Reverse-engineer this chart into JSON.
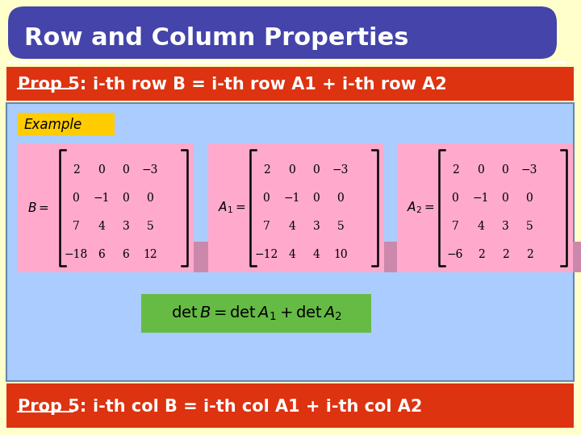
{
  "title": "Row and Column Properties",
  "title_bg": "#4444aa",
  "title_fg": "#ffffff",
  "slide_bg": "#ffffcc",
  "content_bg": "#aaccff",
  "prop5_bg": "#dd3311",
  "prop5_fg": "#ffffff",
  "prop5_text": "Prop 5:",
  "prop5_row_detail": "i-th row B = i-th row A1 + i-th row A2",
  "prop5_col_detail": "i-th col B = i-th col A1 + i-th col A2",
  "example_bg": "#ffcc00",
  "matrix_bg": "#ffaacc",
  "matrix_highlight_bg": "#cc88aa",
  "det_bg": "#66bb44",
  "B_matrix": [
    [
      "2",
      "0",
      "0",
      "−3"
    ],
    [
      "0",
      "−1",
      "0",
      "0"
    ],
    [
      "7",
      "4",
      "3",
      "5"
    ],
    [
      "−18",
      "6",
      "6",
      "12"
    ]
  ],
  "A1_matrix": [
    [
      "2",
      "0",
      "0",
      "−3"
    ],
    [
      "0",
      "−1",
      "0",
      "0"
    ],
    [
      "7",
      "4",
      "3",
      "5"
    ],
    [
      "−12",
      "4",
      "4",
      "10"
    ]
  ],
  "A2_matrix": [
    [
      "2",
      "0",
      "0",
      "−3"
    ],
    [
      "0",
      "−1",
      "0",
      "0"
    ],
    [
      "7",
      "4",
      "3",
      "5"
    ],
    [
      "−6",
      "2",
      "2",
      "2"
    ]
  ]
}
